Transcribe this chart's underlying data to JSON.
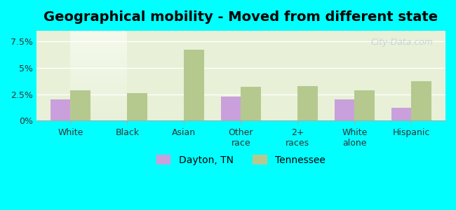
{
  "title": "Geographical mobility - Moved from different state",
  "categories": [
    "White",
    "Black",
    "Asian",
    "Other\nrace",
    "2+\nraces",
    "White\nalone",
    "Hispanic"
  ],
  "dayton_values": [
    2.0,
    0.0,
    0.0,
    2.3,
    0.0,
    2.0,
    1.2
  ],
  "tennessee_values": [
    2.9,
    2.6,
    6.7,
    3.2,
    3.25,
    2.9,
    3.7
  ],
  "dayton_color": "#c9a0dc",
  "tennessee_color": "#b5c98e",
  "background_color": "#00ffff",
  "plot_bg_gradient_top": "#f0f5e0",
  "plot_bg_gradient_bottom": "#ffffff",
  "bar_width": 0.35,
  "ylim": [
    0,
    8.5
  ],
  "yticks": [
    0,
    2.5,
    5.0,
    7.5
  ],
  "ytick_labels": [
    "0%",
    "2.5%",
    "5%",
    "7.5%"
  ],
  "legend_labels": [
    "Dayton, TN",
    "Tennessee"
  ],
  "watermark": "City-Data.com",
  "title_fontsize": 14,
  "tick_fontsize": 9,
  "legend_fontsize": 10
}
